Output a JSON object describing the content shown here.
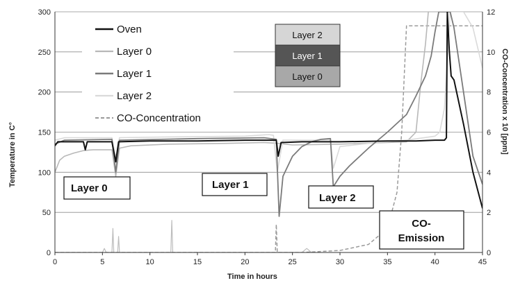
{
  "chart_data": {
    "type": "line",
    "xlabel": "Time in  hours",
    "ylabel": "Temperature in C°",
    "y2label": "CO-Concentration x 10 [ppm]",
    "xlim": [
      0,
      45
    ],
    "ylim": [
      0,
      300
    ],
    "y2lim": [
      0,
      12
    ],
    "x_ticks": [
      0,
      5,
      10,
      15,
      20,
      25,
      30,
      35,
      40,
      45
    ],
    "y_ticks": [
      0,
      50,
      100,
      150,
      200,
      250,
      300
    ],
    "y2_ticks": [
      0,
      2,
      4,
      6,
      8,
      10,
      12
    ],
    "grid": "horizontal",
    "legend_position": "top-left",
    "series": [
      {
        "name": "Oven",
        "color": "#111111",
        "width": 2,
        "dash": "",
        "axis": "y",
        "points": [
          [
            0,
            133
          ],
          [
            0.3,
            138
          ],
          [
            1,
            138
          ],
          [
            3,
            138
          ],
          [
            3.2,
            128
          ],
          [
            3.4,
            138
          ],
          [
            6,
            138
          ],
          [
            6.4,
            113
          ],
          [
            6.7,
            138
          ],
          [
            10,
            139
          ],
          [
            15,
            139
          ],
          [
            20,
            140
          ],
          [
            23.3,
            140
          ],
          [
            23.5,
            120
          ],
          [
            23.8,
            137
          ],
          [
            26,
            138
          ],
          [
            29,
            138
          ],
          [
            30,
            138
          ],
          [
            35,
            139
          ],
          [
            38,
            139
          ],
          [
            40,
            140
          ],
          [
            41,
            140
          ],
          [
            41.2,
            143
          ],
          [
            41.3,
            300
          ],
          [
            41.5,
            252
          ],
          [
            41.7,
            220
          ],
          [
            42,
            215
          ],
          [
            43,
            160
          ],
          [
            44,
            100
          ],
          [
            45,
            55
          ]
        ]
      },
      {
        "name": "Layer 0",
        "color": "#b8b8b8",
        "width": 1.6,
        "dash": "",
        "axis": "y",
        "points": [
          [
            0,
            100
          ],
          [
            0.5,
            115
          ],
          [
            1,
            120
          ],
          [
            2,
            124
          ],
          [
            3,
            127
          ],
          [
            4,
            128
          ],
          [
            6,
            128
          ],
          [
            6.4,
            95
          ],
          [
            6.8,
            130
          ],
          [
            8,
            133
          ],
          [
            12,
            135
          ],
          [
            18,
            136
          ],
          [
            22,
            137
          ],
          [
            23.5,
            136
          ],
          [
            25,
            134
          ],
          [
            30,
            135
          ],
          [
            35,
            137
          ],
          [
            37,
            138
          ],
          [
            38,
            150
          ],
          [
            38.5,
            210
          ],
          [
            39,
            260
          ],
          [
            39.3,
            300
          ]
        ]
      },
      {
        "name": "Layer 1",
        "color": "#7a7a7a",
        "width": 1.8,
        "dash": "",
        "axis": "y",
        "points": [
          [
            0,
            135
          ],
          [
            1,
            140
          ],
          [
            6,
            141
          ],
          [
            6.4,
            100
          ],
          [
            6.8,
            140
          ],
          [
            15,
            142
          ],
          [
            22,
            143
          ],
          [
            23.3,
            141
          ],
          [
            23.6,
            45
          ],
          [
            24,
            95
          ],
          [
            25,
            120
          ],
          [
            26,
            132
          ],
          [
            27,
            138
          ],
          [
            28,
            141
          ],
          [
            29,
            142
          ],
          [
            29.3,
            82
          ],
          [
            30,
            95
          ],
          [
            31,
            108
          ],
          [
            33,
            130
          ],
          [
            35,
            150
          ],
          [
            37,
            172
          ],
          [
            38,
            195
          ],
          [
            39,
            220
          ],
          [
            39.6,
            245
          ],
          [
            40,
            275
          ],
          [
            40.4,
            300
          ],
          [
            41.6,
            300
          ],
          [
            42,
            280
          ],
          [
            43,
            200
          ],
          [
            44,
            120
          ],
          [
            45,
            85
          ]
        ]
      },
      {
        "name": "Layer 2",
        "color": "#dadada",
        "width": 1.6,
        "dash": "",
        "axis": "y",
        "points": [
          [
            0,
            140
          ],
          [
            1,
            143
          ],
          [
            6,
            143
          ],
          [
            6.4,
            118
          ],
          [
            6.8,
            143
          ],
          [
            12,
            144
          ],
          [
            20,
            145
          ],
          [
            22.5,
            147
          ],
          [
            23,
            146
          ],
          [
            23.4,
            100
          ],
          [
            24,
            140
          ],
          [
            28,
            140
          ],
          [
            29,
            140
          ],
          [
            29.3,
            105
          ],
          [
            30,
            132
          ],
          [
            33,
            136
          ],
          [
            37,
            140
          ],
          [
            40,
            145
          ],
          [
            40.5,
            150
          ],
          [
            41,
            180
          ],
          [
            41.3,
            240
          ],
          [
            41.6,
            300
          ],
          [
            43,
            300
          ],
          [
            44,
            280
          ],
          [
            45,
            230
          ]
        ]
      },
      {
        "name": "CO-Concentration",
        "color": "#9a9a9a",
        "width": 1.5,
        "dash": "5,3",
        "axis": "y2",
        "points": [
          [
            0,
            0
          ],
          [
            23.2,
            0
          ],
          [
            23.3,
            1.4
          ],
          [
            23.4,
            0
          ],
          [
            26,
            0
          ],
          [
            30,
            0.1
          ],
          [
            33,
            0.4
          ],
          [
            35,
            1.2
          ],
          [
            36,
            3
          ],
          [
            36.5,
            6
          ],
          [
            37,
            11.3
          ],
          [
            45,
            11.3
          ]
        ]
      },
      {
        "name": "",
        "color": "#bdbdbd",
        "width": 1.2,
        "dash": "",
        "axis": "y",
        "points": [
          [
            0,
            0
          ],
          [
            5,
            0
          ],
          [
            5.2,
            5
          ],
          [
            5.4,
            0
          ],
          [
            6,
            0
          ],
          [
            6.1,
            30
          ],
          [
            6.2,
            0
          ],
          [
            6.6,
            0
          ],
          [
            6.7,
            20
          ],
          [
            6.8,
            0
          ],
          [
            12.2,
            0
          ],
          [
            12.3,
            40
          ],
          [
            12.4,
            0
          ],
          [
            22,
            0
          ],
          [
            26,
            0
          ],
          [
            26.5,
            5
          ],
          [
            27,
            0
          ]
        ]
      }
    ],
    "legend_entries": [
      "Oven",
      "Layer 0",
      "Layer 1",
      "Layer 2",
      "CO-Concentration"
    ]
  },
  "annotations": {
    "layer0_label": "Layer 0",
    "layer1_label": "Layer 1",
    "layer2_label": "Layer 2",
    "co_emission_line1": "CO-",
    "co_emission_line2": "Emission"
  },
  "layer_stack": [
    {
      "label": "Layer 2",
      "fill": "#d6d6d6",
      "text_color": "#111111"
    },
    {
      "label": "Layer 1",
      "fill": "#555555",
      "text_color": "#ffffff"
    },
    {
      "label": "Layer 0",
      "fill": "#a8a8a8",
      "text_color": "#111111"
    }
  ]
}
